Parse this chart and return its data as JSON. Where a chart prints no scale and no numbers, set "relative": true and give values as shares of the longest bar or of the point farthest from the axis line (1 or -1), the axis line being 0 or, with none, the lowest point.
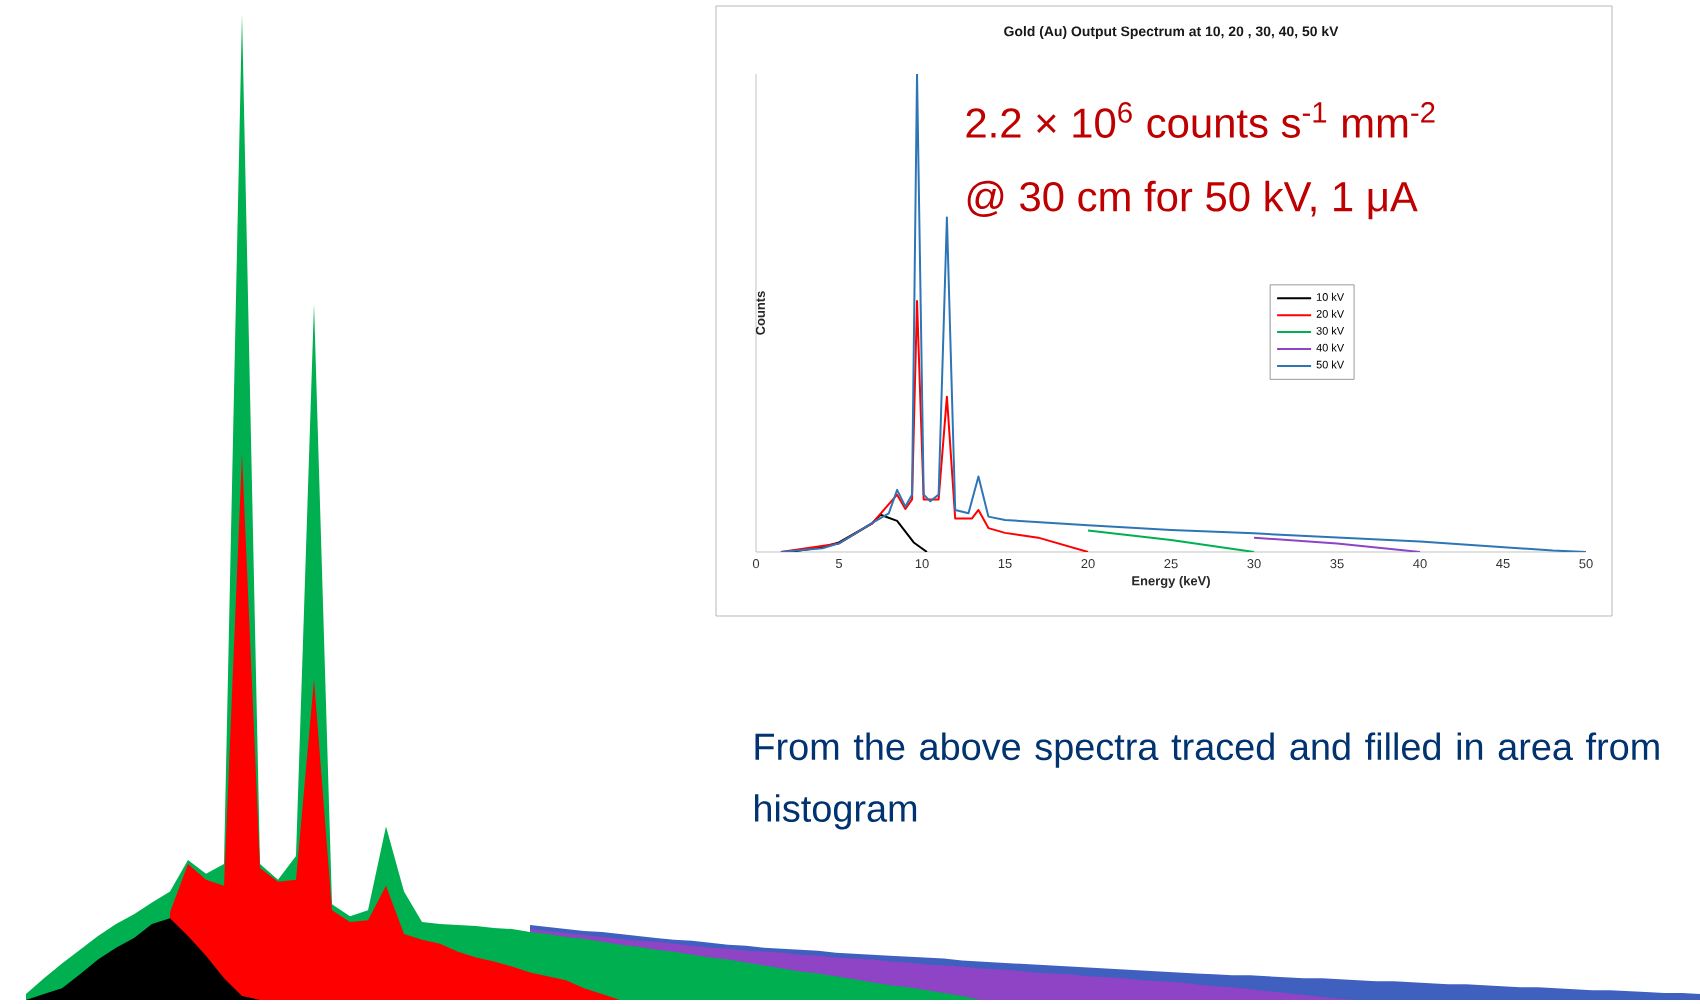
{
  "chart_data": [
    {
      "type": "area",
      "relative": true,
      "tick_labels": false,
      "annotations": [
        "From the above spectra traced and filled in area from histogram"
      ],
      "categories": [
        null,
        null,
        null,
        null,
        null,
        null,
        null,
        null,
        null,
        null,
        null,
        null,
        null,
        null,
        null,
        null,
        null,
        null,
        null,
        null,
        null,
        null,
        null,
        null,
        null,
        null,
        null,
        null,
        null,
        null,
        null,
        null,
        null,
        null,
        null,
        null,
        null,
        null,
        null,
        null,
        null,
        null,
        null,
        null,
        null,
        null,
        null,
        null,
        null,
        null,
        null,
        null,
        null,
        null,
        null,
        null,
        null,
        null,
        null,
        null,
        null,
        null,
        null,
        null,
        null,
        null,
        null,
        null,
        null,
        null,
        null,
        null,
        null,
        null,
        null,
        null,
        null,
        null,
        null,
        null,
        null,
        null,
        null,
        null,
        null,
        null,
        null,
        null,
        null,
        null,
        null,
        null,
        null,
        null
      ],
      "series": [
        {
          "color": "#4060c0",
          "values": [
            null,
            null,
            null,
            null,
            null,
            null,
            null,
            null,
            null,
            null,
            null,
            null,
            null,
            null,
            null,
            null,
            null,
            null,
            null,
            null,
            null,
            null,
            null,
            null,
            null,
            null,
            null,
            null,
            0.076,
            0.074,
            0.072,
            0.07,
            0.069,
            0.067,
            0.065,
            0.063,
            0.061,
            0.06,
            0.058,
            0.056,
            0.055,
            0.053,
            0.052,
            0.051,
            0.05,
            0.048,
            0.047,
            0.046,
            0.045,
            0.044,
            0.043,
            0.042,
            0.04,
            0.039,
            0.038,
            0.037,
            0.036,
            0.035,
            0.034,
            0.033,
            0.032,
            0.031,
            0.03,
            0.029,
            0.028,
            0.027,
            0.026,
            0.025,
            0.025,
            0.024,
            0.023,
            0.022,
            0.022,
            0.021,
            0.02,
            0.019,
            0.019,
            0.018,
            0.017,
            0.016,
            0.016,
            0.015,
            0.014,
            0.013,
            0.013,
            0.012,
            0.011,
            0.01,
            0.01,
            0.009,
            0.008,
            0.007,
            0.007,
            0.006
          ]
        },
        {
          "color": "#8e44c4",
          "values": [
            null,
            null,
            null,
            null,
            null,
            null,
            null,
            null,
            null,
            null,
            null,
            null,
            null,
            null,
            null,
            null,
            null,
            null,
            null,
            null,
            null,
            null,
            null,
            null,
            null,
            null,
            null,
            null,
            0.072,
            0.07,
            0.068,
            0.066,
            0.064,
            0.062,
            0.06,
            0.059,
            0.057,
            0.055,
            0.053,
            0.052,
            0.05,
            0.049,
            0.048,
            0.046,
            0.045,
            0.043,
            0.042,
            0.041,
            0.039,
            0.038,
            0.036,
            0.035,
            0.034,
            0.032,
            0.031,
            0.03,
            0.028,
            0.027,
            0.026,
            0.024,
            0.023,
            0.022,
            0.02,
            0.019,
            0.018,
            0.016,
            0.014,
            0.013,
            0.011,
            0.009,
            0.007,
            0.005,
            0.003,
            0.001,
            0,
            null,
            null,
            null,
            null,
            null,
            null,
            null,
            null,
            null,
            null,
            null,
            null,
            null,
            null,
            null,
            null,
            null,
            null,
            null
          ]
        },
        {
          "color": "#00b050",
          "values": [
            0.006,
            0.022,
            0.037,
            0.051,
            0.065,
            0.077,
            0.087,
            0.099,
            0.11,
            0.142,
            0.128,
            0.138,
            1,
            0.138,
            0.122,
            0.146,
            0.706,
            0.097,
            0.085,
            0.091,
            0.176,
            0.11,
            0.079,
            0.077,
            0.076,
            0.075,
            0.073,
            0.072,
            0.069,
            0.067,
            0.064,
            0.062,
            0.059,
            0.056,
            0.054,
            0.051,
            0.049,
            0.046,
            0.043,
            0.041,
            0.038,
            0.035,
            0.032,
            0.029,
            0.027,
            0.024,
            0.021,
            0.018,
            0.015,
            0.013,
            0.01,
            0.007,
            0.004,
            0,
            null,
            null,
            null,
            null,
            null,
            null,
            null,
            null,
            null,
            null,
            null,
            null,
            null,
            null,
            null,
            null,
            null,
            null,
            null,
            null,
            null,
            null,
            null,
            null,
            null,
            null,
            null,
            null,
            null,
            null,
            null,
            null,
            null,
            null,
            null,
            null,
            null,
            null,
            null,
            null
          ]
        },
        {
          "color": "#ff0000",
          "values": [
            null,
            null,
            null,
            null,
            null,
            null,
            null,
            null,
            0.089,
            0.138,
            0.122,
            0.116,
            0.554,
            0.134,
            0.12,
            0.122,
            0.325,
            0.091,
            0.079,
            0.081,
            0.116,
            0.067,
            0.061,
            0.057,
            0.049,
            0.043,
            0.039,
            0.034,
            0.028,
            0.024,
            0.02,
            0.012,
            0.006,
            0,
            null,
            null,
            null,
            null,
            null,
            null,
            null,
            null,
            null,
            null,
            null,
            null,
            null,
            null,
            null,
            null,
            null,
            null,
            null,
            null,
            null,
            null,
            null,
            null,
            null,
            null,
            null,
            null,
            null,
            null,
            null,
            null,
            null,
            null,
            null,
            null,
            null,
            null,
            null,
            null,
            null,
            null,
            null,
            null,
            null,
            null,
            null,
            null,
            null,
            null,
            null,
            null,
            null,
            null,
            null,
            null,
            null,
            null,
            null,
            null
          ]
        },
        {
          "color": "#000000",
          "values": [
            0,
            0.006,
            0.012,
            0.026,
            0.041,
            0.053,
            0.063,
            0.077,
            0.083,
            0.065,
            0.045,
            0.022,
            0.004,
            0,
            null,
            null,
            null,
            null,
            null,
            null,
            null,
            null,
            null,
            null,
            null,
            null,
            null,
            null,
            null,
            null,
            null,
            null,
            null,
            null,
            null,
            null,
            null,
            null,
            null,
            null,
            null,
            null,
            null,
            null,
            null,
            null,
            null,
            null,
            null,
            null,
            null,
            null,
            null,
            null,
            null,
            null,
            null,
            null,
            null,
            null,
            null,
            null,
            null,
            null,
            null,
            null,
            null,
            null,
            null,
            null,
            null,
            null,
            null,
            null,
            null,
            null,
            null,
            null,
            null,
            null,
            null,
            null,
            null,
            null,
            null,
            null,
            null,
            null,
            null,
            null,
            null,
            null,
            null,
            null
          ]
        }
      ]
    },
    {
      "type": "line",
      "title": "Gold (Au) Output Spectrum at 10, 20 , 30, 40, 50 kV",
      "xlabel": "Energy (keV)",
      "ylabel": "Counts",
      "relative": true,
      "xlim": [
        0,
        50
      ],
      "xticks": [
        0,
        5,
        10,
        15,
        20,
        25,
        30,
        35,
        40,
        45,
        50
      ],
      "tick_labels": "x",
      "legend": "right",
      "annotations": [
        "2.2 × 10$^{6}$ counts s$^{-1}$ mm$^{-2}$",
        "@ 30 cm for 50 kV, 1 μA"
      ],
      "series": [
        {
          "name": "10 kV",
          "color": "#000000",
          "x": [
            2,
            4,
            5,
            6,
            7,
            7.5,
            8.5,
            9.5,
            10.3
          ],
          "values": [
            0,
            0.01,
            0.02,
            0.04,
            0.06,
            0.078,
            0.065,
            0.02,
            0
          ]
        },
        {
          "name": "20 kV",
          "color": "#ff0000",
          "x": [
            1.5,
            5,
            7,
            8.5,
            9,
            9.4,
            9.7,
            10.1,
            11,
            11.5,
            12,
            13,
            13.4,
            14,
            15,
            17,
            20
          ],
          "values": [
            0,
            0.018,
            0.06,
            0.12,
            0.09,
            0.11,
            0.525,
            0.11,
            0.11,
            0.325,
            0.07,
            0.07,
            0.088,
            0.05,
            0.04,
            0.03,
            0
          ]
        },
        {
          "name": "30 kV",
          "color": "#00b050",
          "x": [
            20,
            25,
            30
          ],
          "values": [
            0.045,
            0.025,
            0
          ]
        },
        {
          "name": "40 kV",
          "color": "#8e44c4",
          "x": [
            30,
            35,
            40
          ],
          "values": [
            0.03,
            0.018,
            0
          ]
        },
        {
          "name": "50 kV",
          "color": "#2e75b6",
          "x": [
            1.5,
            4,
            5,
            6,
            7,
            8,
            8.5,
            9,
            9.4,
            9.7,
            10.1,
            10.5,
            11,
            11.5,
            12,
            12.8,
            13.4,
            14,
            15,
            20,
            25,
            30,
            40,
            48,
            50
          ],
          "values": [
            0,
            0.008,
            0.018,
            0.039,
            0.061,
            0.081,
            0.13,
            0.095,
            0.12,
            1.0,
            0.12,
            0.106,
            0.12,
            0.7,
            0.088,
            0.081,
            0.158,
            0.074,
            0.067,
            0.056,
            0.046,
            0.039,
            0.022,
            0.003,
            0
          ]
        }
      ]
    }
  ]
}
